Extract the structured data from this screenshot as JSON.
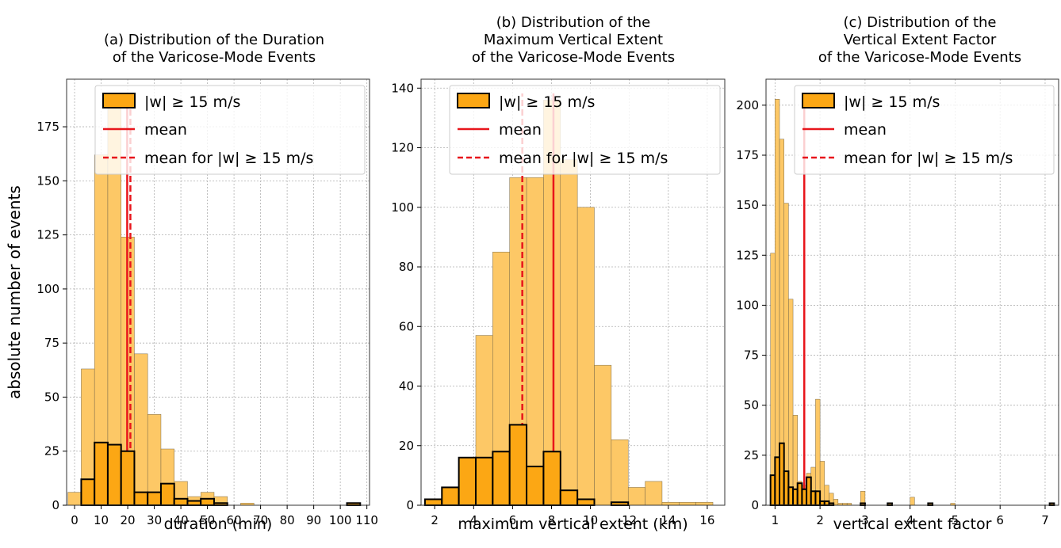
{
  "ylabel": "absolute number of events",
  "legend": {
    "hist_label": "|w|  ≥  15 m/s",
    "mean_label": "mean",
    "mean_strong_label": "mean for |w|  ≥  15 m/s"
  },
  "colors": {
    "all_fill": "#fdc866",
    "strong_fill": "#fca714",
    "edge": "#000000",
    "mean_line": "#e8151b",
    "grid": "#b0b0b0"
  },
  "chart_data": [
    {
      "type": "bar",
      "title": [
        "(a) Distribution of the Duration",
        "of the Varicose-Mode Events"
      ],
      "xlabel": "duration (min)",
      "xlim": [
        -3,
        111
      ],
      "ylim": [
        0,
        197
      ],
      "xticks": [
        0,
        10,
        20,
        30,
        40,
        50,
        60,
        70,
        80,
        90,
        100,
        110
      ],
      "yticks": [
        0,
        25,
        50,
        75,
        100,
        125,
        150,
        175
      ],
      "bin_width": 5,
      "all_events": {
        "bin_starts": [
          -2.5,
          2.5,
          7.5,
          12.5,
          17.5,
          22.5,
          27.5,
          32.5,
          37.5,
          42.5,
          47.5,
          52.5,
          57.5,
          62.5,
          67.5,
          72.5,
          77.5,
          82.5,
          87.5,
          92.5,
          97.5,
          102.5
        ],
        "values": [
          6,
          63,
          162,
          186,
          124,
          70,
          42,
          26,
          11,
          4,
          6,
          4,
          0,
          1,
          0,
          0,
          0,
          0,
          0,
          0,
          0,
          1
        ]
      },
      "strong_events": {
        "bin_starts": [
          2.5,
          7.5,
          12.5,
          17.5,
          22.5,
          27.5,
          32.5,
          37.5,
          42.5,
          47.5,
          52.5,
          102.5
        ],
        "values": [
          12,
          29,
          28,
          25,
          6,
          6,
          10,
          3,
          2,
          3,
          1,
          1
        ]
      },
      "mean": 19.8,
      "mean_strong": 21.0
    },
    {
      "type": "bar",
      "title": [
        "(b) Distribution of the",
        "Maximum Vertical Extent",
        "of the Varicose-Mode Events"
      ],
      "xlabel": "maximum vertical extent (km)",
      "xlim": [
        1.3,
        16.9
      ],
      "ylim": [
        0,
        143
      ],
      "xticks": [
        2,
        4,
        6,
        8,
        10,
        12,
        14,
        16
      ],
      "yticks": [
        0,
        20,
        40,
        60,
        80,
        100,
        120,
        140
      ],
      "bin_width": 0.87,
      "all_events": {
        "bin_starts": [
          1.5,
          2.37,
          3.24,
          4.11,
          4.98,
          5.85,
          6.72,
          7.59,
          8.46,
          9.33,
          10.2,
          11.07,
          11.94,
          12.81,
          13.68,
          14.55,
          15.42,
          16.29
        ],
        "values": [
          2,
          6,
          16,
          57,
          85,
          110,
          110,
          136,
          116,
          100,
          47,
          22,
          6,
          8,
          1,
          1,
          1,
          0
        ]
      },
      "strong_events": {
        "bin_starts": [
          1.5,
          2.37,
          3.24,
          4.11,
          4.98,
          5.85,
          6.72,
          7.59,
          8.46,
          9.33,
          10.2,
          11.07,
          11.94,
          12.81
        ],
        "values": [
          2,
          6,
          16,
          16,
          18,
          27,
          13,
          18,
          5,
          2,
          0,
          1,
          0,
          0
        ]
      },
      "mean": 8.1,
      "mean_strong": 6.5
    },
    {
      "type": "bar",
      "title": [
        "(c) Distribution of the",
        "Vertical Extent Factor",
        "of the Varicose-Mode Events"
      ],
      "xlabel": "vertical extent factor",
      "xlim": [
        0.8,
        7.3
      ],
      "ylim": [
        0,
        213
      ],
      "xticks": [
        1,
        2,
        3,
        4,
        5,
        6,
        7
      ],
      "yticks": [
        0,
        25,
        50,
        75,
        100,
        125,
        150,
        175,
        200
      ],
      "bin_width": 0.1,
      "all_events": {
        "bin_starts": [
          0.9,
          1.0,
          1.1,
          1.2,
          1.3,
          1.4,
          1.5,
          1.6,
          1.7,
          1.8,
          1.9,
          2.0,
          2.1,
          2.2,
          2.3,
          2.4,
          2.5,
          2.6,
          2.9,
          3.5,
          4.0,
          4.4,
          4.9,
          7.1
        ],
        "values": [
          126,
          203,
          183,
          151,
          103,
          45,
          12,
          10,
          16,
          19,
          53,
          22,
          10,
          6,
          3,
          1,
          1,
          1,
          7,
          1,
          4,
          1,
          1,
          1
        ]
      },
      "strong_events": {
        "bin_starts": [
          0.9,
          1.0,
          1.1,
          1.2,
          1.3,
          1.4,
          1.5,
          1.6,
          1.7,
          1.8,
          1.9,
          2.0,
          2.1,
          2.2,
          2.3,
          2.9,
          3.5,
          4.4,
          7.1
        ],
        "values": [
          15,
          24,
          31,
          17,
          9,
          8,
          11,
          8,
          14,
          7,
          7,
          2,
          2,
          1,
          0,
          1,
          1,
          1,
          1
        ]
      },
      "mean": 1.65,
      "mean_strong": 1.65
    }
  ]
}
